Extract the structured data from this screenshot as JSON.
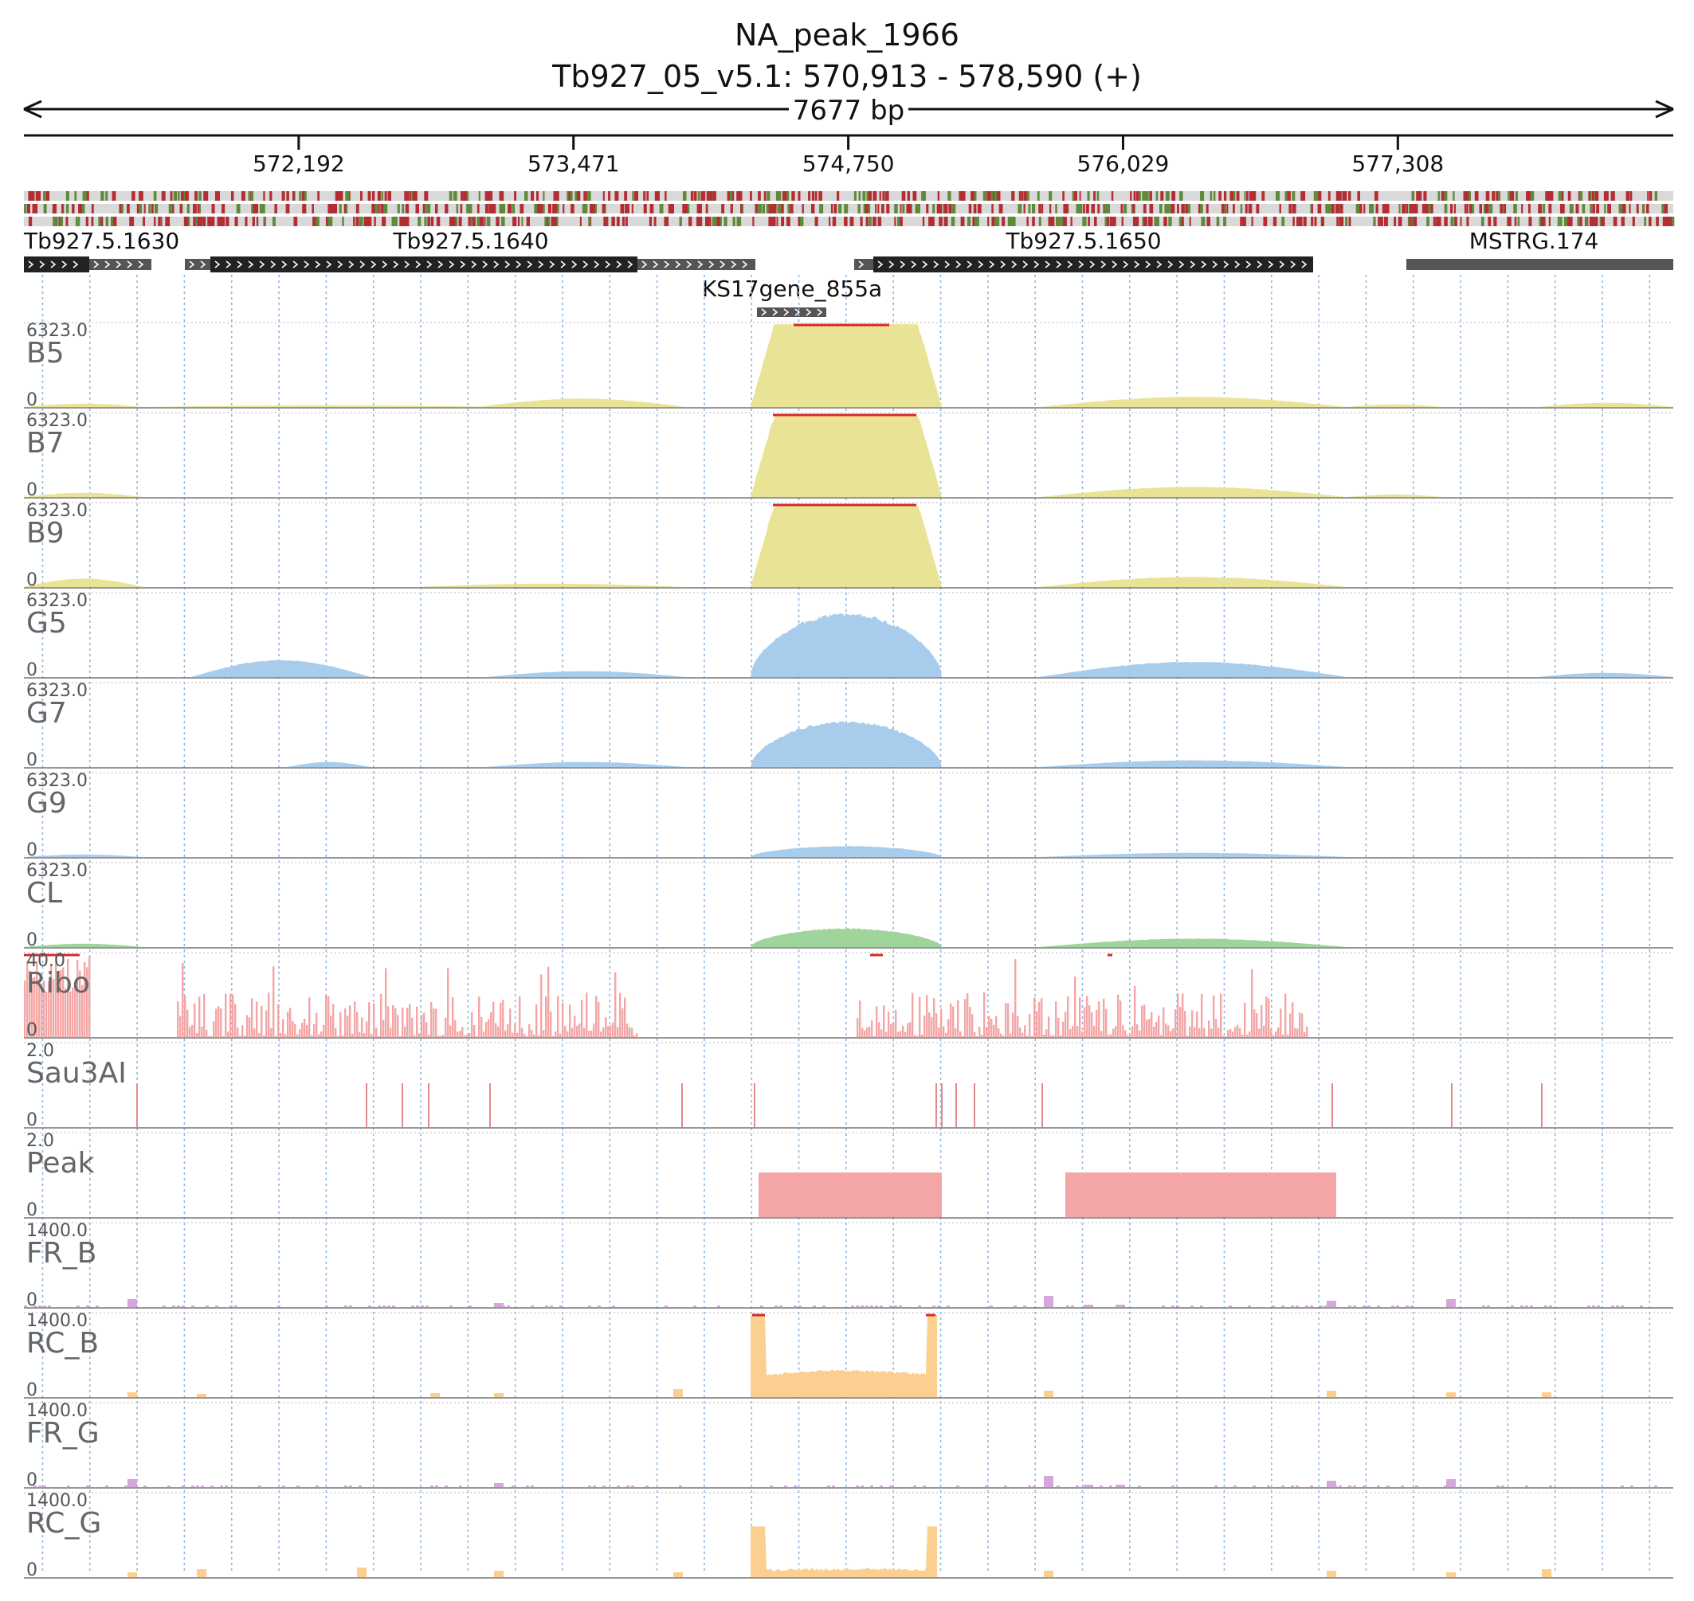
{
  "header": {
    "title": "NA_peak_1966",
    "locus": "Tb927_05_v5.1: 570,913 - 578,590 (+)",
    "span": "7677 bp"
  },
  "ruler": {
    "ticks": [
      "572,192",
      "573,471",
      "574,750",
      "576,029",
      "577,308"
    ]
  },
  "genes": [
    {
      "name": "Tb927.5.1630",
      "strand": "+"
    },
    {
      "name": "Tb927.5.1640",
      "strand": "+"
    },
    {
      "name": "Tb927.5.1650",
      "strand": "+"
    },
    {
      "name": "MSTRG.174",
      "strand": ""
    },
    {
      "name": "KS17gene_855a",
      "strand": "+"
    }
  ],
  "tracks": [
    {
      "name": "B5",
      "max": "6323.0",
      "min": "0",
      "color": "#e9e396"
    },
    {
      "name": "B7",
      "max": "6323.0",
      "min": "0",
      "color": "#e9e396"
    },
    {
      "name": "B9",
      "max": "6323.0",
      "min": "0",
      "color": "#e9e396"
    },
    {
      "name": "G5",
      "max": "6323.0",
      "min": "0",
      "color": "#a8cdec"
    },
    {
      "name": "G7",
      "max": "6323.0",
      "min": "0",
      "color": "#a8cdec"
    },
    {
      "name": "G9",
      "max": "6323.0",
      "min": "0",
      "color": "#a8cdec"
    },
    {
      "name": "CL",
      "max": "6323.0",
      "min": "0",
      "color": "#9fd49a"
    },
    {
      "name": "Ribo",
      "max": "40.0",
      "min": "0",
      "color": "#f4a6a6"
    },
    {
      "name": "Sau3AI",
      "max": "2.0",
      "min": "0",
      "color": "#f4a6a6"
    },
    {
      "name": "Peak",
      "max": "2.0",
      "min": "0",
      "color": "#f4a6a6"
    },
    {
      "name": "FR_B",
      "max": "1400.0",
      "min": "0",
      "color": "#d4a8d8"
    },
    {
      "name": "RC_B",
      "max": "1400.0",
      "min": "0",
      "color": "#fbcf8f"
    },
    {
      "name": "FR_G",
      "max": "1400.0",
      "min": "0",
      "color": "#d4a8d8"
    },
    {
      "name": "RC_G",
      "max": "1400.0",
      "min": "0",
      "color": "#fbcf8f"
    }
  ],
  "colors": {
    "clip": "#d62728",
    "gene": "#222222",
    "utr": "#555555",
    "gridline": "#8fb8e0"
  }
}
